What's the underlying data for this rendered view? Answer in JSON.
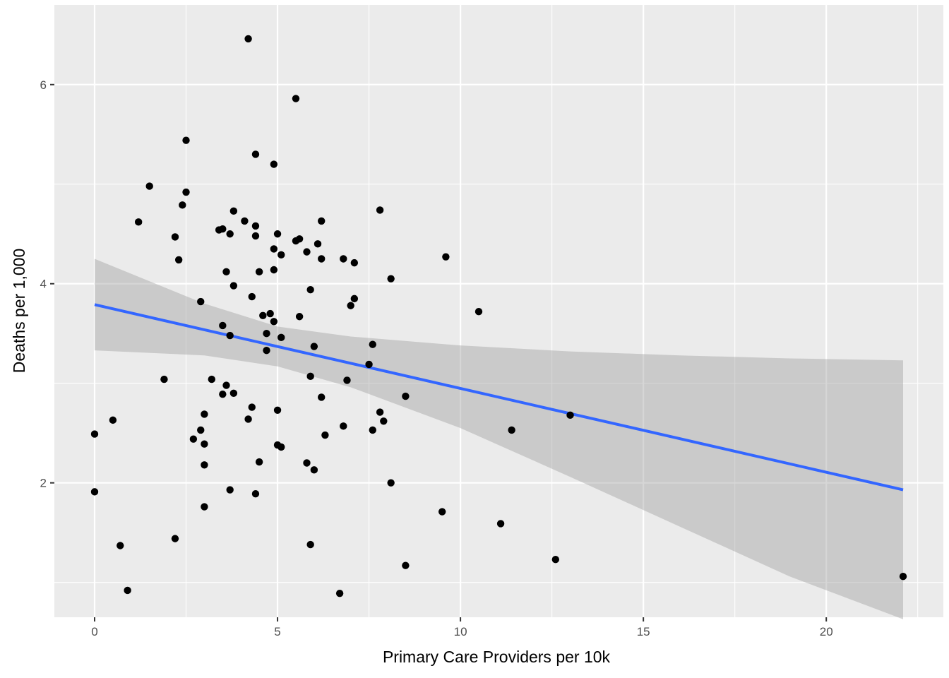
{
  "chart_data": {
    "type": "scatter",
    "xlabel": "Primary Care Providers per 10k",
    "ylabel": "Deaths per 1,000",
    "xlim": [
      -1.1,
      23.2
    ],
    "ylim": [
      0.65,
      6.8
    ],
    "x_ticks": [
      {
        "value": 0,
        "label": "0"
      },
      {
        "value": 5,
        "label": "5"
      },
      {
        "value": 10,
        "label": "10"
      },
      {
        "value": 15,
        "label": "15"
      },
      {
        "value": 20,
        "label": "20"
      }
    ],
    "y_ticks": [
      {
        "value": 2,
        "label": "2"
      },
      {
        "value": 4,
        "label": "4"
      },
      {
        "value": 6,
        "label": "6"
      }
    ],
    "grid": true,
    "colors": {
      "panel": "#ebebeb",
      "grid_major": "#ffffff",
      "points": "#000000",
      "trend_line": "#3366ff",
      "confidence_band": "#999999"
    },
    "trend": {
      "x_start": 0,
      "y_start": 3.79,
      "x_end": 22.1,
      "y_end": 1.93,
      "band": [
        {
          "x": 0,
          "lower": 3.33,
          "upper": 4.25
        },
        {
          "x": 3,
          "lower": 3.28,
          "upper": 3.8
        },
        {
          "x": 5,
          "lower": 3.17,
          "upper": 3.57
        },
        {
          "x": 7,
          "lower": 2.96,
          "upper": 3.47
        },
        {
          "x": 10,
          "lower": 2.55,
          "upper": 3.38
        },
        {
          "x": 13,
          "lower": 2.06,
          "upper": 3.32
        },
        {
          "x": 16,
          "lower": 1.56,
          "upper": 3.28
        },
        {
          "x": 19,
          "lower": 1.06,
          "upper": 3.25
        },
        {
          "x": 22.1,
          "lower": 0.63,
          "upper": 3.23
        }
      ]
    },
    "points": [
      {
        "x": 0,
        "y": 2.49
      },
      {
        "x": 0,
        "y": 1.91
      },
      {
        "x": 0.5,
        "y": 2.63
      },
      {
        "x": 0.7,
        "y": 1.37
      },
      {
        "x": 0.9,
        "y": 0.92
      },
      {
        "x": 1.2,
        "y": 4.62
      },
      {
        "x": 1.5,
        "y": 4.98
      },
      {
        "x": 1.9,
        "y": 3.04
      },
      {
        "x": 2.2,
        "y": 4.47
      },
      {
        "x": 2.2,
        "y": 1.44
      },
      {
        "x": 2.3,
        "y": 4.24
      },
      {
        "x": 2.4,
        "y": 4.79
      },
      {
        "x": 2.5,
        "y": 5.44
      },
      {
        "x": 2.5,
        "y": 4.92
      },
      {
        "x": 2.7,
        "y": 2.44
      },
      {
        "x": 2.9,
        "y": 3.82
      },
      {
        "x": 2.9,
        "y": 2.53
      },
      {
        "x": 3.0,
        "y": 2.69
      },
      {
        "x": 3.0,
        "y": 2.39
      },
      {
        "x": 3.0,
        "y": 2.18
      },
      {
        "x": 3.0,
        "y": 1.76
      },
      {
        "x": 3.2,
        "y": 3.04
      },
      {
        "x": 3.4,
        "y": 4.54
      },
      {
        "x": 3.5,
        "y": 4.55
      },
      {
        "x": 3.5,
        "y": 3.58
      },
      {
        "x": 3.5,
        "y": 2.89
      },
      {
        "x": 3.6,
        "y": 4.12
      },
      {
        "x": 3.6,
        "y": 2.98
      },
      {
        "x": 3.7,
        "y": 4.5
      },
      {
        "x": 3.7,
        "y": 3.48
      },
      {
        "x": 3.7,
        "y": 1.93
      },
      {
        "x": 3.8,
        "y": 4.73
      },
      {
        "x": 3.8,
        "y": 3.98
      },
      {
        "x": 3.8,
        "y": 2.9
      },
      {
        "x": 4.1,
        "y": 4.63
      },
      {
        "x": 4.2,
        "y": 6.46
      },
      {
        "x": 4.2,
        "y": 2.64
      },
      {
        "x": 4.3,
        "y": 3.87
      },
      {
        "x": 4.3,
        "y": 2.76
      },
      {
        "x": 4.4,
        "y": 5.3
      },
      {
        "x": 4.4,
        "y": 4.58
      },
      {
        "x": 4.4,
        "y": 4.48
      },
      {
        "x": 4.4,
        "y": 1.89
      },
      {
        "x": 4.5,
        "y": 4.12
      },
      {
        "x": 4.5,
        "y": 2.21
      },
      {
        "x": 4.6,
        "y": 3.68
      },
      {
        "x": 4.7,
        "y": 3.5
      },
      {
        "x": 4.7,
        "y": 3.33
      },
      {
        "x": 4.8,
        "y": 3.7
      },
      {
        "x": 4.9,
        "y": 5.2
      },
      {
        "x": 4.9,
        "y": 4.35
      },
      {
        "x": 4.9,
        "y": 4.14
      },
      {
        "x": 4.9,
        "y": 3.62
      },
      {
        "x": 5.0,
        "y": 4.5
      },
      {
        "x": 5.0,
        "y": 2.73
      },
      {
        "x": 5.0,
        "y": 2.38
      },
      {
        "x": 5.1,
        "y": 4.29
      },
      {
        "x": 5.1,
        "y": 3.46
      },
      {
        "x": 5.1,
        "y": 2.36
      },
      {
        "x": 5.5,
        "y": 5.86
      },
      {
        "x": 5.5,
        "y": 4.43
      },
      {
        "x": 5.6,
        "y": 4.45
      },
      {
        "x": 5.6,
        "y": 3.67
      },
      {
        "x": 5.8,
        "y": 4.32
      },
      {
        "x": 5.8,
        "y": 2.2
      },
      {
        "x": 5.9,
        "y": 3.94
      },
      {
        "x": 5.9,
        "y": 3.07
      },
      {
        "x": 5.9,
        "y": 1.38
      },
      {
        "x": 6.0,
        "y": 3.37
      },
      {
        "x": 6.0,
        "y": 2.13
      },
      {
        "x": 6.1,
        "y": 4.4
      },
      {
        "x": 6.2,
        "y": 4.63
      },
      {
        "x": 6.2,
        "y": 4.25
      },
      {
        "x": 6.2,
        "y": 2.86
      },
      {
        "x": 6.3,
        "y": 2.48
      },
      {
        "x": 6.7,
        "y": 0.89
      },
      {
        "x": 6.8,
        "y": 4.25
      },
      {
        "x": 6.8,
        "y": 2.57
      },
      {
        "x": 6.9,
        "y": 3.03
      },
      {
        "x": 7.0,
        "y": 3.78
      },
      {
        "x": 7.1,
        "y": 4.21
      },
      {
        "x": 7.1,
        "y": 3.85
      },
      {
        "x": 7.5,
        "y": 3.19
      },
      {
        "x": 7.6,
        "y": 3.39
      },
      {
        "x": 7.6,
        "y": 2.53
      },
      {
        "x": 7.8,
        "y": 4.74
      },
      {
        "x": 7.8,
        "y": 2.71
      },
      {
        "x": 7.9,
        "y": 2.62
      },
      {
        "x": 8.1,
        "y": 4.05
      },
      {
        "x": 8.1,
        "y": 2.0
      },
      {
        "x": 8.5,
        "y": 2.87
      },
      {
        "x": 8.5,
        "y": 1.17
      },
      {
        "x": 9.5,
        "y": 1.71
      },
      {
        "x": 9.6,
        "y": 4.27
      },
      {
        "x": 10.5,
        "y": 3.72
      },
      {
        "x": 11.1,
        "y": 1.59
      },
      {
        "x": 11.4,
        "y": 2.53
      },
      {
        "x": 12.6,
        "y": 1.23
      },
      {
        "x": 13.0,
        "y": 2.68
      },
      {
        "x": 22.1,
        "y": 1.06
      }
    ]
  }
}
